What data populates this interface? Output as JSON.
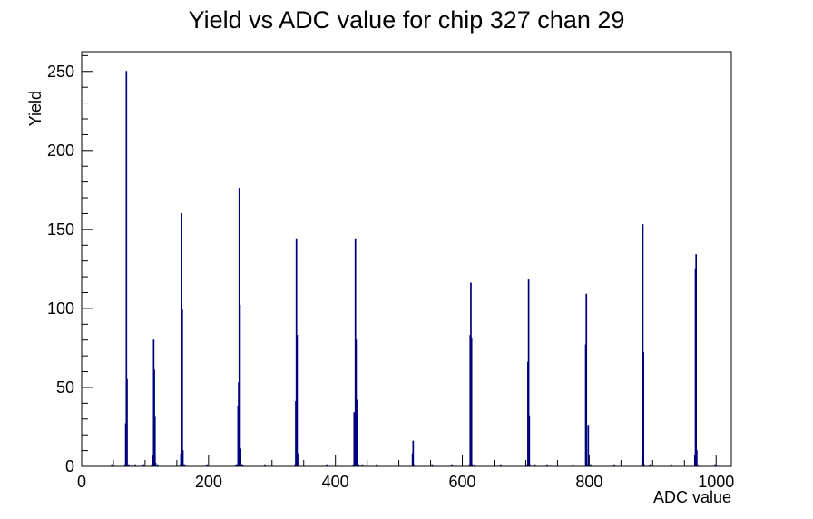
{
  "chart_data": {
    "type": "bar",
    "title": "Yield vs ADC value for chip 327 chan 29",
    "xlabel": "ADC value",
    "ylabel": "Yield",
    "xlim": [
      0,
      1024
    ],
    "ylim": [
      0,
      262.5
    ],
    "xticks": [
      0,
      200,
      400,
      600,
      800,
      1000
    ],
    "yticks": [
      0,
      50,
      100,
      150,
      200,
      250
    ],
    "line_color": "#00007f",
    "grid": false,
    "legend": "none",
    "bins": [
      [
        47,
        1
      ],
      [
        68,
        1
      ],
      [
        69,
        27
      ],
      [
        70,
        250
      ],
      [
        71,
        55
      ],
      [
        74,
        1
      ],
      [
        79,
        1
      ],
      [
        84,
        1
      ],
      [
        97,
        1
      ],
      [
        110,
        1
      ],
      [
        112,
        7
      ],
      [
        113,
        80
      ],
      [
        114,
        61
      ],
      [
        115,
        31
      ],
      [
        116,
        2
      ],
      [
        119,
        1
      ],
      [
        155,
        1
      ],
      [
        156,
        8
      ],
      [
        157,
        160
      ],
      [
        158,
        99
      ],
      [
        159,
        10
      ],
      [
        160,
        1
      ],
      [
        162,
        1
      ],
      [
        197,
        1
      ],
      [
        243,
        1
      ],
      [
        245,
        1
      ],
      [
        246,
        38
      ],
      [
        247,
        53
      ],
      [
        248,
        176
      ],
      [
        249,
        102
      ],
      [
        250,
        11
      ],
      [
        251,
        1
      ],
      [
        253,
        1
      ],
      [
        288,
        1
      ],
      [
        336,
        1
      ],
      [
        337,
        41
      ],
      [
        338,
        144
      ],
      [
        339,
        83
      ],
      [
        340,
        8
      ],
      [
        341,
        1
      ],
      [
        386,
        1
      ],
      [
        428,
        1
      ],
      [
        429,
        34
      ],
      [
        430,
        28
      ],
      [
        431,
        144
      ],
      [
        432,
        80
      ],
      [
        433,
        42
      ],
      [
        434,
        1
      ],
      [
        436,
        1
      ],
      [
        442,
        1
      ],
      [
        464,
        1
      ],
      [
        521,
        8
      ],
      [
        522,
        16
      ],
      [
        523,
        1
      ],
      [
        552,
        1
      ],
      [
        583,
        1
      ],
      [
        611,
        1
      ],
      [
        612,
        83
      ],
      [
        613,
        116
      ],
      [
        614,
        81
      ],
      [
        615,
        1
      ],
      [
        619,
        1
      ],
      [
        660,
        1
      ],
      [
        702,
        1
      ],
      [
        703,
        66
      ],
      [
        704,
        118
      ],
      [
        705,
        32
      ],
      [
        706,
        1
      ],
      [
        714,
        1
      ],
      [
        733,
        1
      ],
      [
        774,
        1
      ],
      [
        794,
        77
      ],
      [
        795,
        109
      ],
      [
        796,
        1
      ],
      [
        798,
        26
      ],
      [
        799,
        1
      ],
      [
        802,
        1
      ],
      [
        839,
        1
      ],
      [
        883,
        7
      ],
      [
        884,
        153
      ],
      [
        885,
        72
      ],
      [
        886,
        1
      ],
      [
        895,
        1
      ],
      [
        929,
        1
      ],
      [
        966,
        7
      ],
      [
        967,
        125
      ],
      [
        968,
        134
      ],
      [
        969,
        10
      ],
      [
        970,
        1
      ],
      [
        998,
        1
      ]
    ]
  }
}
